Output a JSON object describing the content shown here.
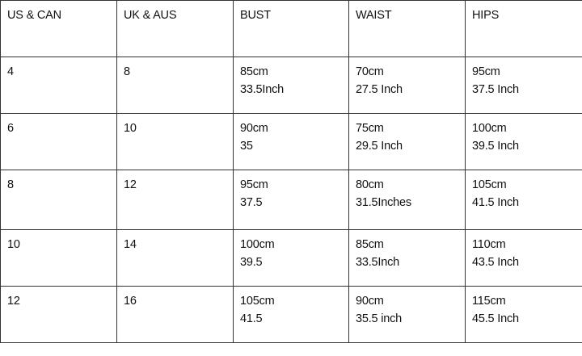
{
  "headers": [
    "US & CAN",
    "UK & AUS",
    "BUST",
    "WAIST",
    "HIPS"
  ],
  "rows": [
    {
      "us": "4",
      "uk": "8",
      "bust": [
        "85cm",
        "33.5Inch"
      ],
      "waist": [
        "70cm",
        "27.5 Inch"
      ],
      "hips": [
        "95cm",
        "37.5 Inch"
      ]
    },
    {
      "us": "6",
      "uk": "10",
      "bust": [
        "90cm",
        "35"
      ],
      "waist": [
        "75cm",
        "29.5 Inch"
      ],
      "hips": [
        "100cm",
        "39.5 Inch"
      ]
    },
    {
      "us": "8",
      "uk": "12",
      "bust": [
        "95cm",
        "37.5"
      ],
      "waist": [
        "80cm",
        "31.5Inches"
      ],
      "hips": [
        "105cm",
        "41.5 Inch"
      ]
    },
    {
      "us": "10",
      "uk": "14",
      "bust": [
        "100cm",
        "39.5"
      ],
      "waist": [
        "85cm",
        "33.5Inch"
      ],
      "hips": [
        "110cm",
        "43.5 Inch"
      ]
    },
    {
      "us": "12",
      "uk": "16",
      "bust": [
        "105cm",
        "41.5"
      ],
      "waist": [
        "90cm",
        "35.5 inch"
      ],
      "hips": [
        "115cm",
        "45.5 Inch"
      ]
    }
  ]
}
